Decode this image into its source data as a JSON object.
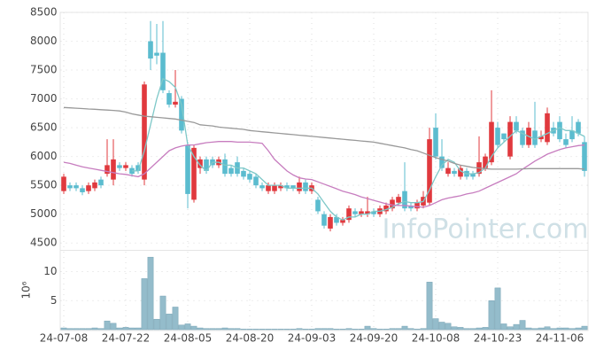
{
  "chart_data": {
    "type": "candlestick",
    "watermark": "InfoPointer.com",
    "categories": [
      "24-07-08",
      null,
      null,
      null,
      null,
      null,
      null,
      null,
      null,
      null,
      "24-07-22",
      null,
      null,
      null,
      null,
      null,
      null,
      null,
      null,
      null,
      "24-08-05",
      null,
      null,
      null,
      null,
      null,
      null,
      null,
      null,
      null,
      "24-08-20",
      null,
      null,
      null,
      null,
      null,
      null,
      null,
      null,
      null,
      "24-09-03",
      null,
      null,
      null,
      null,
      null,
      null,
      null,
      null,
      null,
      "24-09-20",
      null,
      null,
      null,
      null,
      null,
      null,
      null,
      null,
      null,
      "24-10-08",
      null,
      null,
      null,
      null,
      null,
      null,
      null,
      null,
      null,
      "24-10-23",
      null,
      null,
      null,
      null,
      null,
      null,
      null,
      null,
      null,
      "24-11-06",
      null,
      null,
      null,
      null
    ],
    "open": [
      5400,
      5500,
      5500,
      5450,
      5400,
      5450,
      5600,
      5700,
      5600,
      5850,
      5800,
      5800,
      5850,
      5600,
      8000,
      7800,
      7800,
      7100,
      6900,
      7000,
      6200,
      5250,
      5800,
      5950,
      5950,
      5850,
      5950,
      5800,
      5900,
      5750,
      5700,
      5650,
      5500,
      5400,
      5400,
      5450,
      5500,
      5500,
      5400,
      5550,
      5400,
      5250,
      5000,
      4750,
      4950,
      4850,
      4900,
      5050,
      5000,
      5000,
      5050,
      5000,
      5050,
      5100,
      5200,
      5400,
      5150,
      5100,
      5150,
      5200,
      6500,
      6000,
      5700,
      5750,
      5650,
      5750,
      5700,
      5700,
      5800,
      5900,
      6500,
      6400,
      6000,
      6600,
      6450,
      6200,
      6450,
      6300,
      6250,
      6500,
      6600,
      6300,
      6450,
      6600,
      6250
    ],
    "high": [
      5700,
      5550,
      5550,
      5500,
      5550,
      5600,
      5650,
      6300,
      6300,
      5900,
      5900,
      5850,
      5900,
      7300,
      8350,
      8300,
      8350,
      7150,
      7500,
      7050,
      6250,
      6200,
      6000,
      6000,
      6000,
      6000,
      6050,
      5850,
      6000,
      5800,
      5750,
      5700,
      5550,
      5550,
      5550,
      5550,
      5550,
      5500,
      5650,
      5600,
      5550,
      5300,
      5050,
      5000,
      5000,
      4950,
      5150,
      5100,
      5100,
      5300,
      5100,
      5150,
      5200,
      5300,
      5350,
      5900,
      5200,
      5250,
      5400,
      6500,
      6750,
      6300,
      5900,
      5800,
      5850,
      5800,
      5750,
      6350,
      6050,
      7150,
      6600,
      6400,
      6700,
      6700,
      6500,
      6600,
      6950,
      6450,
      6850,
      6600,
      6700,
      6400,
      6700,
      6650,
      6350
    ],
    "low": [
      5350,
      5400,
      5400,
      5330,
      5350,
      5400,
      5450,
      5650,
      5500,
      5750,
      5750,
      5650,
      5700,
      5500,
      7500,
      7600,
      7100,
      6850,
      6850,
      6400,
      5100,
      5200,
      5700,
      5700,
      5800,
      5800,
      5650,
      5650,
      5650,
      5600,
      5550,
      5450,
      5400,
      5350,
      5350,
      5400,
      5400,
      5400,
      5350,
      5350,
      5350,
      5000,
      4750,
      4700,
      4800,
      4800,
      4850,
      4950,
      4950,
      4950,
      4950,
      4950,
      5000,
      5050,
      5150,
      5050,
      5050,
      5050,
      5100,
      5150,
      5950,
      5750,
      5650,
      5650,
      5600,
      5600,
      5600,
      5650,
      5750,
      5850,
      6150,
      6250,
      5950,
      6400,
      6150,
      6150,
      6150,
      6250,
      6200,
      6350,
      6250,
      6150,
      6250,
      6350,
      5650
    ],
    "close": [
      5650,
      5450,
      5450,
      5380,
      5500,
      5550,
      5500,
      5850,
      5950,
      5800,
      5850,
      5700,
      5750,
      7250,
      7700,
      7750,
      7150,
      6900,
      6950,
      6450,
      5350,
      6150,
      5950,
      5750,
      5850,
      5950,
      5700,
      5700,
      5700,
      5650,
      5600,
      5500,
      5450,
      5500,
      5500,
      5500,
      5450,
      5450,
      5550,
      5400,
      5500,
      5050,
      4800,
      4950,
      4850,
      4900,
      5100,
      5000,
      5050,
      5050,
      5000,
      5100,
      5150,
      5250,
      5300,
      5100,
      5100,
      5200,
      5300,
      6300,
      6000,
      5800,
      5800,
      5700,
      5800,
      5650,
      5650,
      5900,
      6000,
      6600,
      6200,
      6300,
      6600,
      6450,
      6200,
      6500,
      6200,
      6350,
      6750,
      6400,
      6300,
      6200,
      6300,
      6400,
      5750
    ],
    "up_color": "#e0393e",
    "down_color": "#5bbccf",
    "lines": [
      {
        "color": "#7ec8c8",
        "values": [
          null,
          null,
          null,
          null,
          null,
          null,
          null,
          null,
          null,
          null,
          null,
          5750,
          5750,
          6100,
          6550,
          7000,
          7350,
          7300,
          7200,
          6900,
          6200,
          6000,
          5850,
          5750,
          5900,
          5900,
          5850,
          5850,
          5800,
          5800,
          5750,
          5700,
          5600,
          5500,
          5500,
          5500,
          5450,
          5450,
          5450,
          5450,
          5450,
          5350,
          5200,
          5050,
          4950,
          4900,
          4950,
          4950,
          5000,
          5000,
          5050,
          5050,
          5080,
          5120,
          5180,
          5220,
          5200,
          5200,
          5220,
          5420,
          5650,
          5850,
          5950,
          5900,
          5750,
          5700,
          5700,
          5720,
          5800,
          6000,
          6150,
          6250,
          6350,
          6450,
          6400,
          6350,
          6300,
          6350,
          6400,
          6450,
          6500,
          6450,
          6450,
          6400,
          6350
        ]
      },
      {
        "color": "#c77dbf",
        "values": [
          5900,
          5880,
          5850,
          5820,
          5800,
          5780,
          5760,
          5740,
          5720,
          5700,
          5690,
          5670,
          5650,
          5700,
          5800,
          5900,
          6000,
          6100,
          6150,
          6180,
          6200,
          6200,
          6220,
          6240,
          6250,
          6260,
          6260,
          6260,
          6250,
          6250,
          6250,
          6240,
          6230,
          6100,
          5950,
          5850,
          5750,
          5680,
          5630,
          5610,
          5600,
          5560,
          5520,
          5480,
          5440,
          5400,
          5370,
          5340,
          5300,
          5270,
          5240,
          5210,
          5180,
          5160,
          5150,
          5150,
          5140,
          5130,
          5120,
          5150,
          5200,
          5250,
          5280,
          5300,
          5320,
          5350,
          5370,
          5400,
          5450,
          5500,
          5550,
          5600,
          5650,
          5700,
          5780,
          5850,
          5920,
          5980,
          6040,
          6080,
          6120,
          6150,
          6170,
          6190,
          6200
        ]
      },
      {
        "color": "#999999",
        "values": [
          6850,
          6844,
          6838,
          6832,
          6825,
          6819,
          6812,
          6806,
          6800,
          6790,
          6770,
          6740,
          6720,
          6700,
          6690,
          6680,
          6670,
          6660,
          6650,
          6630,
          6610,
          6590,
          6550,
          6540,
          6530,
          6510,
          6500,
          6490,
          6480,
          6470,
          6450,
          6440,
          6430,
          6420,
          6410,
          6400,
          6390,
          6380,
          6370,
          6360,
          6350,
          6340,
          6330,
          6320,
          6310,
          6300,
          6290,
          6280,
          6270,
          6260,
          6250,
          6230,
          6210,
          6190,
          6170,
          6150,
          6120,
          6100,
          6060,
          6020,
          5980,
          5950,
          5920,
          5880,
          5850,
          5830,
          5810,
          5800,
          5790,
          5780,
          5780,
          5780,
          5780,
          5780,
          5785,
          5790,
          5790,
          5790,
          5790,
          5790,
          5790,
          5790,
          5790,
          5790,
          5780
        ]
      }
    ],
    "ylim": [
      4380,
      8500
    ],
    "yticks": [
      4500,
      5000,
      5500,
      6000,
      6500,
      7000,
      7500,
      8000,
      8500
    ],
    "grid": true,
    "volume": {
      "type": "bar",
      "ylabel": "10⁶",
      "color": "#94bccb",
      "values": [
        0.3,
        0.2,
        0.2,
        0.2,
        0.2,
        0.3,
        0.2,
        1.5,
        1.1,
        0.3,
        0.4,
        0.3,
        0.3,
        8.8,
        12.5,
        1.8,
        5.8,
        2.7,
        3.9,
        0.8,
        1.0,
        0.6,
        0.3,
        0.2,
        0.2,
        0.2,
        0.3,
        0.2,
        0.2,
        0.1,
        0.1,
        0.1,
        0.1,
        0.1,
        0.1,
        0.1,
        0.1,
        0.1,
        0.2,
        0.1,
        0.1,
        0.2,
        0.2,
        0.2,
        0.1,
        0.1,
        0.2,
        0.1,
        0.1,
        0.6,
        0.2,
        0.1,
        0.1,
        0.2,
        0.2,
        0.6,
        0.2,
        0.1,
        0.2,
        8.2,
        1.9,
        1.3,
        1.1,
        0.5,
        0.4,
        0.2,
        0.2,
        0.3,
        0.4,
        5.0,
        7.2,
        1.0,
        0.5,
        0.9,
        1.6,
        0.3,
        0.2,
        0.3,
        0.5,
        0.2,
        0.3,
        0.3,
        0.2,
        0.3,
        0.6
      ],
      "ylim": [
        0,
        13.6
      ],
      "yticks": [
        5,
        10
      ]
    }
  }
}
